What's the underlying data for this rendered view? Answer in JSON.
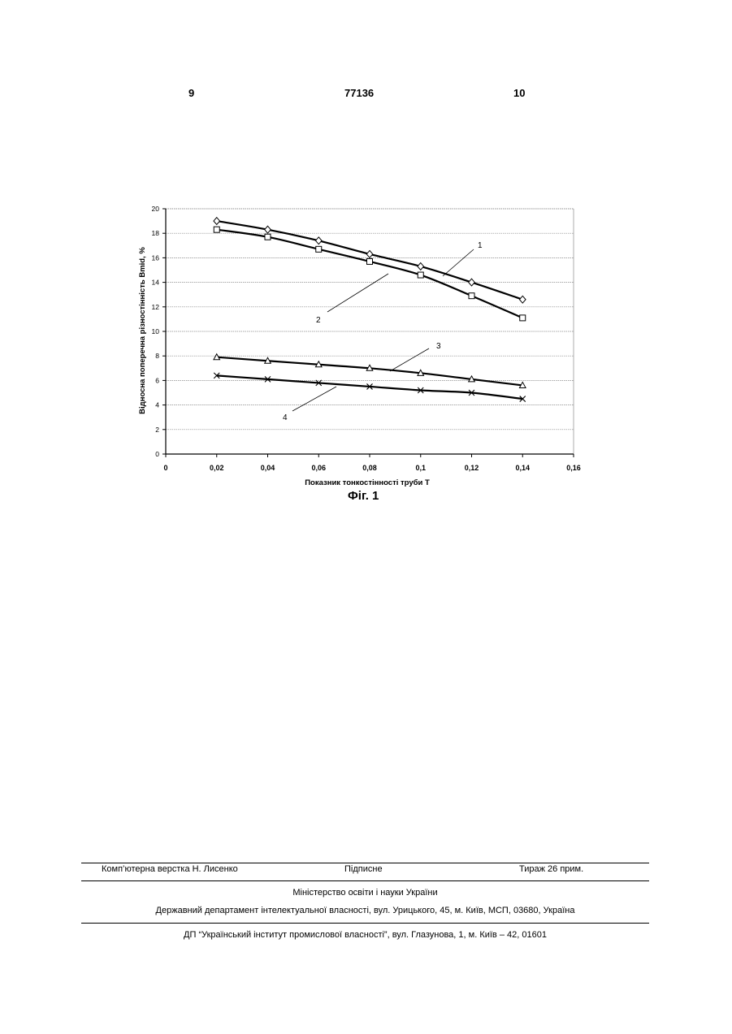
{
  "header": {
    "left_page": "9",
    "patent_number": "77136",
    "right_page": "10"
  },
  "figure_caption": "Фіг. 1",
  "chart_data": {
    "type": "line",
    "xlabel": "Показник тонкостінності труби T",
    "ylabel": "Відносна поперечна різностінність Bmid, %",
    "xlim": [
      0,
      0.16
    ],
    "ylim": [
      0,
      20
    ],
    "x_ticks": [
      "0",
      "0,02",
      "0,04",
      "0,06",
      "0,08",
      "0,1",
      "0,12",
      "0,14",
      "0,16"
    ],
    "y_ticks": [
      "0",
      "2",
      "4",
      "6",
      "8",
      "10",
      "12",
      "14",
      "16",
      "18",
      "20"
    ],
    "grid": "horizontal",
    "x": [
      0.02,
      0.04,
      0.06,
      0.08,
      0.1,
      0.12,
      0.14
    ],
    "series": [
      {
        "label": "1",
        "marker": "diamond",
        "values": [
          19.0,
          18.3,
          17.4,
          16.3,
          15.3,
          14.0,
          12.6
        ]
      },
      {
        "label": "2",
        "marker": "square",
        "values": [
          18.3,
          17.7,
          16.7,
          15.7,
          14.6,
          12.9,
          11.1
        ]
      },
      {
        "label": "3",
        "marker": "triangle",
        "values": [
          7.9,
          7.6,
          7.3,
          7.0,
          6.6,
          6.1,
          5.6
        ]
      },
      {
        "label": "4",
        "marker": "cross",
        "values": [
          6.4,
          6.1,
          5.8,
          5.5,
          5.2,
          5.0,
          4.5
        ]
      }
    ]
  },
  "footer": {
    "layout": "Комп’ютерна верстка Н. Лисенко",
    "signed": "Підписне",
    "circulation": "Тираж 26 прим.",
    "ministry": "Міністерство освіти і науки України",
    "department": "Державний департамент інтелектуальної власності, вул. Урицького, 45, м. Київ, МСП, 03680, Україна",
    "institute": "ДП “Український інститут промислової власності”, вул. Глазунова, 1, м. Київ – 42, 01601"
  }
}
